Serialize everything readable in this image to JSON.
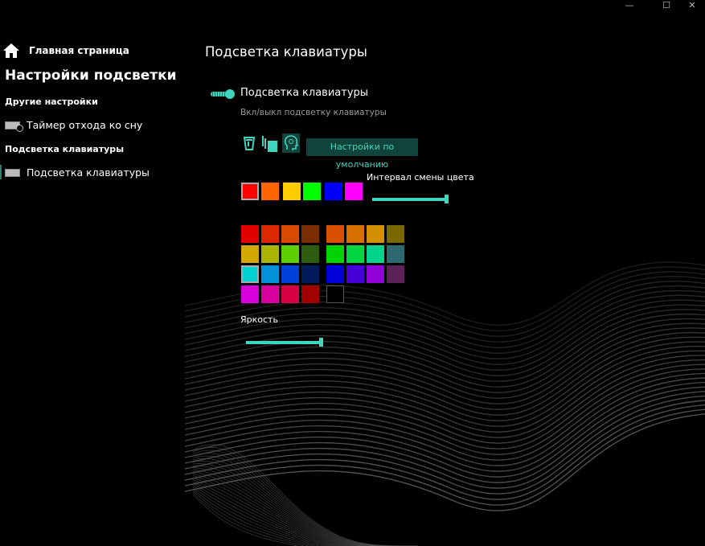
{
  "window": {
    "minimize": "—",
    "maximize": "☐",
    "close": "✕"
  },
  "sidebar": {
    "home_label": "Главная страница",
    "heading": "Настройки подсветки",
    "sections": [
      {
        "label": "Другие настройки",
        "items": [
          {
            "label": "Таймер отхода ко сну",
            "icon": "keyboard-timer-icon"
          }
        ]
      },
      {
        "label": "Подсветка клавиатуры",
        "items": [
          {
            "label": "Подсветка клавиатуры",
            "icon": "keyboard-icon",
            "selected": true
          }
        ]
      }
    ]
  },
  "main": {
    "title": "Подсветка клавиатуры",
    "toggle": {
      "label": "Подсветка клавиатуры",
      "description": "Вкл/выкл подсветку клавиатуры",
      "on": true
    },
    "modes": [
      {
        "icon": "paint-bucket-icon",
        "glyph": "🗑"
      },
      {
        "icon": "layers-icon",
        "glyph": "❐"
      },
      {
        "icon": "head-icon",
        "glyph": "☺",
        "selected": true
      }
    ],
    "default_button": "Настройки по умолчанию",
    "interval_label": "Интервал смены цвета",
    "interval_value": 1.0,
    "cycle_colors": [
      "#ff0000",
      "#ff6600",
      "#ffcc00",
      "#00ff00",
      "#0000ff",
      "#ff00ff"
    ],
    "palette_left": [
      [
        "#e00000",
        "#dc2800",
        "#d84a00",
        "#7a2d00"
      ],
      [
        "#d4a800",
        "#a8b400",
        "#5ccf00",
        "#2e5c0e"
      ],
      [
        "#00d0d0",
        "#0092d8",
        "#0040d8",
        "#001a5c"
      ],
      [
        "#d800d8",
        "#d8009c",
        "#d80044",
        "#a00000"
      ]
    ],
    "palette_right": [
      [
        "#d85000",
        "#d87000",
        "#d48f00",
        "#7a6800"
      ],
      [
        "#00d400",
        "#00d440",
        "#00d48c",
        "#2c6a70"
      ],
      [
        "#0000d8",
        "#4600d8",
        "#9000d8",
        "#5c2258"
      ],
      [
        "#000000"
      ]
    ],
    "selected_palette": "#00d0d0",
    "brightness_label": "Яркость",
    "brightness_value": 1.0,
    "accent": "#3fd6c0"
  }
}
